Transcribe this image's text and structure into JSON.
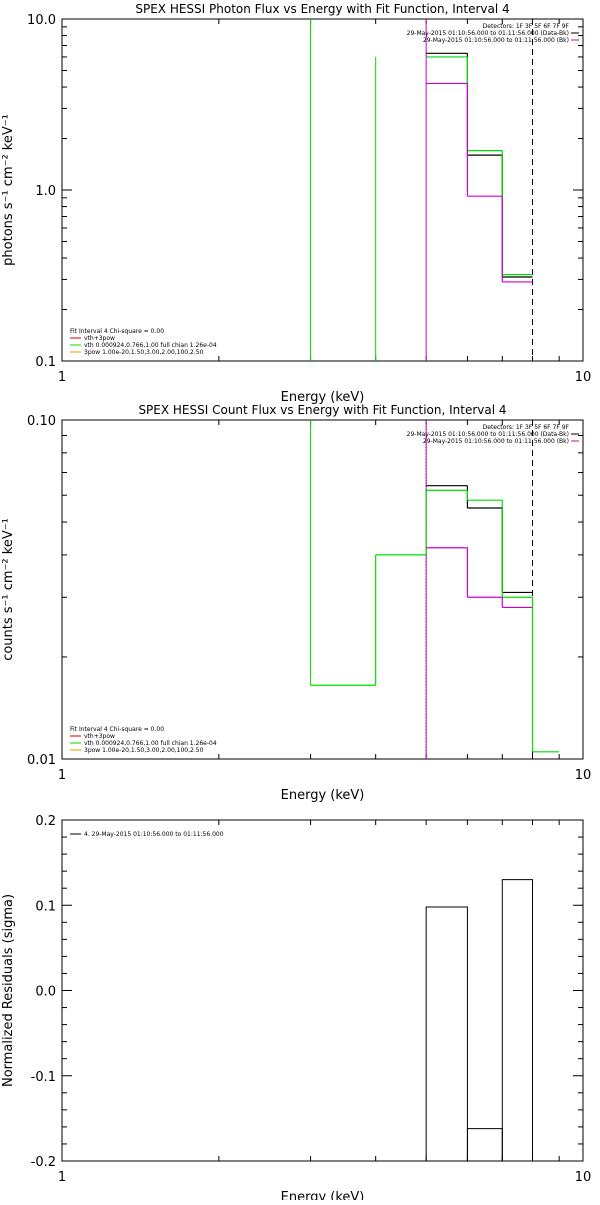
{
  "chart_data": [
    {
      "type": "line",
      "title": "SPEX HESSI Photon Flux vs Energy with Fit Function, Interval 4",
      "xlabel": "Energy (keV)",
      "ylabel": "photons s⁻¹ cm⁻² keV⁻¹",
      "xscale": "log",
      "yscale": "log",
      "xlim": [
        1,
        10
      ],
      "ylim": [
        0.1,
        10
      ],
      "x_ticks": [
        "1",
        "10"
      ],
      "y_ticks": [
        "0.1",
        "1.0",
        "10.0"
      ],
      "legend_right": [
        "Detectors: 1F 3F 5F 6F 7F 9F",
        "29-May-2015 01:10:56.000 to 01:11:56.000 (Data-Bk)",
        "29-May-2015 01:10:56.000 to 01:11:56.000 (Bk)"
      ],
      "legend_left": [
        "Fit Interval 4   Chi-square = 0.00",
        "vth+3pow",
        "vth 0.000924,0.766,1.00  full chian 1.26e-04",
        "3pow 1.00e-20,1.50,3.00,2.00,100,2.50"
      ],
      "series": [
        {
          "color": "#000000",
          "style": "step",
          "points": [
            [
              5.0,
              6.3
            ],
            [
              6.0,
              1.6
            ],
            [
              7.0,
              0.31
            ],
            [
              8.0,
              0.31
            ]
          ]
        },
        {
          "color": "#00dd00",
          "style": "step",
          "points": [
            [
              5.0,
              6.0
            ],
            [
              6.0,
              1.7
            ],
            [
              7.0,
              0.32
            ],
            [
              8.0,
              0.32
            ]
          ]
        },
        {
          "color": "#cc00cc",
          "style": "step",
          "points": [
            [
              5.0,
              4.2
            ],
            [
              6.0,
              0.92
            ],
            [
              7.0,
              0.29
            ],
            [
              8.0,
              0.29
            ]
          ]
        }
      ],
      "vlines": [
        {
          "x": 3.0,
          "color": "#00dd00",
          "dash": "solid"
        },
        {
          "x": 4.0,
          "color": "#00dd00",
          "dash": "solid",
          "from_y": 6.0
        },
        {
          "x": 5.0,
          "color": "#cc00cc",
          "dash": "solid"
        },
        {
          "x": 8.0,
          "color": "#000000",
          "dash": "dashed"
        }
      ]
    },
    {
      "type": "line",
      "title": "SPEX HESSI Count Flux vs Energy with Fit Function, Interval 4",
      "xlabel": "Energy (keV)",
      "ylabel": "counts s⁻¹ cm⁻² keV⁻¹",
      "xscale": "log",
      "yscale": "log",
      "xlim": [
        1,
        10
      ],
      "ylim": [
        0.01,
        0.1
      ],
      "x_ticks": [
        "1",
        "10"
      ],
      "y_ticks": [
        "0.01",
        "0.10"
      ],
      "legend_right": [
        "Detectors: 1F 3F 5F 6F 7F 9F",
        "29-May-2015 01:10:56.000 to 01:11:56.000 (Data-Bk)",
        "29-May-2015 01:10:56.000 to 01:11:56.000 (Bk)"
      ],
      "legend_left": [
        "Fit Interval 4   Chi-square = 0.00",
        "vth+3pow",
        "vth 0.000924,0.766,1.00  full chian 1.26e-04",
        "3pow 1.00e-20,1.50,3.00,2.00,100,2.50"
      ],
      "series": [
        {
          "color": "#000000",
          "style": "step",
          "points": [
            [
              5.0,
              0.064
            ],
            [
              6.0,
              0.055
            ],
            [
              7.0,
              0.031
            ],
            [
              8.0,
              0.031
            ]
          ]
        },
        {
          "color": "#00dd00",
          "style": "step",
          "points": [
            [
              3.0,
              0.0165
            ],
            [
              4.0,
              0.04
            ],
            [
              5.0,
              0.062
            ],
            [
              6.0,
              0.058
            ],
            [
              7.0,
              0.03
            ],
            [
              8.0,
              0.0105
            ],
            [
              9.0,
              0.0105
            ]
          ]
        },
        {
          "color": "#cc00cc",
          "style": "step",
          "points": [
            [
              5.0,
              0.042
            ],
            [
              6.0,
              0.03
            ],
            [
              7.0,
              0.028
            ],
            [
              8.0,
              0.028
            ]
          ]
        }
      ],
      "vlines": [
        {
          "x": 3.0,
          "color": "#00dd00",
          "dash": "solid",
          "to_y": 0.0165
        },
        {
          "x": 5.0,
          "color": "#000000",
          "dash": "dotted"
        },
        {
          "x": 5.0,
          "color": "#cc00cc",
          "dash": "solid"
        },
        {
          "x": 8.0,
          "color": "#000000",
          "dash": "dashed"
        }
      ]
    },
    {
      "type": "line",
      "title": "",
      "xlabel": "Energy (keV)",
      "ylabel": "Normalized Residuals (sigma)",
      "xscale": "log",
      "yscale": "linear",
      "xlim": [
        1,
        10
      ],
      "ylim": [
        -0.2,
        0.2
      ],
      "x_ticks": [
        "1",
        "10"
      ],
      "y_ticks": [
        "-0.2",
        "-0.1",
        "0.0",
        "0.1",
        "0.2"
      ],
      "legend_left": [
        "4. 29-May-2015 01:10:56.000 to 01:11:56.000"
      ],
      "series": [
        {
          "color": "#000000",
          "style": "bars",
          "bins": [
            [
              5.0,
              6.0,
              0.098
            ],
            [
              6.0,
              7.0,
              -0.162
            ],
            [
              7.0,
              8.0,
              0.13
            ]
          ]
        }
      ]
    }
  ]
}
